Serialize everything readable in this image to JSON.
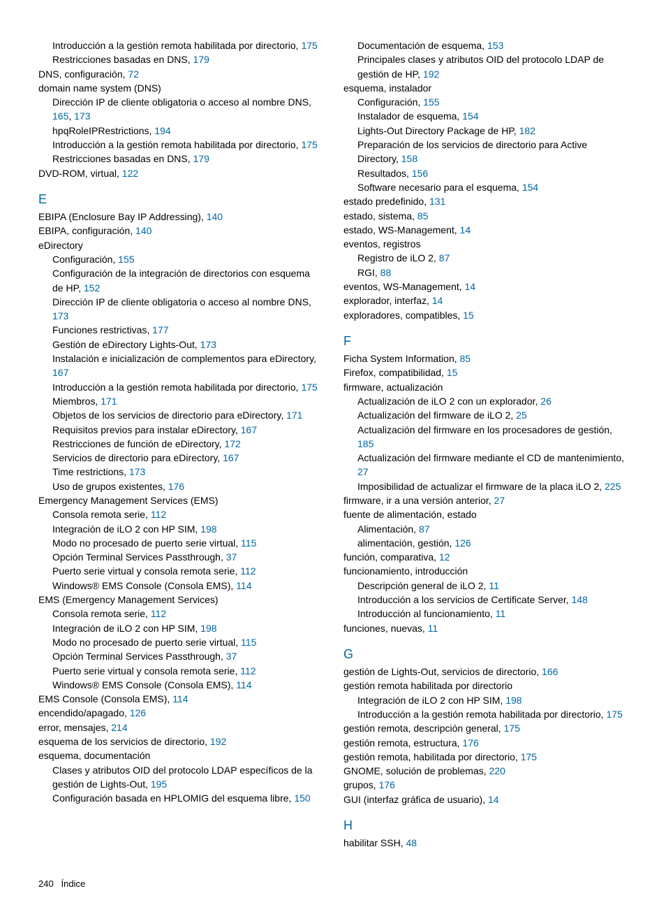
{
  "link_color": "#0066a1",
  "footer": {
    "page_num": "240",
    "label": "Índice"
  },
  "left": [
    {
      "lvl": 1,
      "text": "Introducción a la gestión remota habilitada por directorio, ",
      "pages": [
        "175"
      ]
    },
    {
      "lvl": 1,
      "text": "Restricciones basadas en DNS, ",
      "pages": [
        "179"
      ]
    },
    {
      "lvl": 0,
      "text": "DNS, configuración, ",
      "pages": [
        "72"
      ]
    },
    {
      "lvl": 0,
      "text": "domain name system (DNS)"
    },
    {
      "lvl": 1,
      "text": "Dirección IP de cliente obligatoria o acceso al nombre DNS, ",
      "pages": [
        "165",
        "173"
      ]
    },
    {
      "lvl": 1,
      "text": "hpqRoleIPRestrictions, ",
      "pages": [
        "194"
      ]
    },
    {
      "lvl": 1,
      "text": "Introducción a la gestión remota habilitada por directorio, ",
      "pages": [
        "175"
      ]
    },
    {
      "lvl": 1,
      "text": "Restricciones basadas en DNS, ",
      "pages": [
        "179"
      ]
    },
    {
      "lvl": 0,
      "text": "DVD-ROM, virtual, ",
      "pages": [
        "122"
      ]
    },
    {
      "letter": "E"
    },
    {
      "lvl": 0,
      "text": "EBIPA (Enclosure Bay IP Addressing), ",
      "pages": [
        "140"
      ]
    },
    {
      "lvl": 0,
      "text": "EBIPA, configuración, ",
      "pages": [
        "140"
      ]
    },
    {
      "lvl": 0,
      "text": "eDirectory"
    },
    {
      "lvl": 1,
      "text": "Configuración, ",
      "pages": [
        "155"
      ]
    },
    {
      "lvl": 1,
      "text": "Configuración de la integración de directorios con esquema de HP, ",
      "pages": [
        "152"
      ]
    },
    {
      "lvl": 1,
      "text": "Dirección IP de cliente obligatoria o acceso al nombre DNS, ",
      "pages": [
        "173"
      ]
    },
    {
      "lvl": 1,
      "text": "Funciones restrictivas, ",
      "pages": [
        "177"
      ]
    },
    {
      "lvl": 1,
      "text": "Gestión de eDirectory Lights-Out, ",
      "pages": [
        "173"
      ]
    },
    {
      "lvl": 1,
      "text": "Instalación e inicialización de complementos para eDirectory, ",
      "pages": [
        "167"
      ]
    },
    {
      "lvl": 1,
      "text": "Introducción a la gestión remota habilitada por directorio, ",
      "pages": [
        "175"
      ]
    },
    {
      "lvl": 1,
      "text": "Miembros, ",
      "pages": [
        "171"
      ]
    },
    {
      "lvl": 1,
      "text": "Objetos de los servicios de directorio para eDirectory, ",
      "pages": [
        "171"
      ]
    },
    {
      "lvl": 1,
      "text": "Requisitos previos para instalar eDirectory, ",
      "pages": [
        "167"
      ]
    },
    {
      "lvl": 1,
      "text": "Restricciones de función de eDirectory, ",
      "pages": [
        "172"
      ]
    },
    {
      "lvl": 1,
      "text": "Servicios de directorio para eDirectory, ",
      "pages": [
        "167"
      ]
    },
    {
      "lvl": 1,
      "text": "Time restrictions, ",
      "pages": [
        "173"
      ]
    },
    {
      "lvl": 1,
      "text": "Uso de grupos existentes, ",
      "pages": [
        "176"
      ]
    },
    {
      "lvl": 0,
      "text": "Emergency Management Services (EMS)"
    },
    {
      "lvl": 1,
      "text": "Consola remota serie, ",
      "pages": [
        "112"
      ]
    },
    {
      "lvl": 1,
      "text": "Integración de iLO 2 con HP SIM, ",
      "pages": [
        "198"
      ]
    },
    {
      "lvl": 1,
      "text": "Modo no procesado de puerto serie virtual, ",
      "pages": [
        "115"
      ]
    },
    {
      "lvl": 1,
      "text": "Opción Terminal Services Passthrough, ",
      "pages": [
        "37"
      ]
    },
    {
      "lvl": 1,
      "text": "Puerto serie virtual y consola remota serie, ",
      "pages": [
        "112"
      ]
    },
    {
      "lvl": 1,
      "text": "Windows® EMS Console (Consola EMS), ",
      "pages": [
        "114"
      ]
    },
    {
      "lvl": 0,
      "text": "EMS (Emergency Management Services)"
    },
    {
      "lvl": 1,
      "text": "Consola remota serie, ",
      "pages": [
        "112"
      ]
    },
    {
      "lvl": 1,
      "text": "Integración de iLO 2 con HP SIM, ",
      "pages": [
        "198"
      ]
    },
    {
      "lvl": 1,
      "text": "Modo no procesado de puerto serie virtual, ",
      "pages": [
        "115"
      ]
    },
    {
      "lvl": 1,
      "text": "Opción Terminal Services Passthrough, ",
      "pages": [
        "37"
      ]
    },
    {
      "lvl": 1,
      "text": "Puerto serie virtual y consola remota serie, ",
      "pages": [
        "112"
      ]
    },
    {
      "lvl": 1,
      "text": "Windows® EMS Console (Consola EMS), ",
      "pages": [
        "114"
      ]
    },
    {
      "lvl": 0,
      "text": "EMS Console (Consola EMS), ",
      "pages": [
        "114"
      ]
    },
    {
      "lvl": 0,
      "text": "encendido/apagado, ",
      "pages": [
        "126"
      ]
    },
    {
      "lvl": 0,
      "text": "error, mensajes, ",
      "pages": [
        "214"
      ]
    },
    {
      "lvl": 0,
      "text": "esquema de los servicios de directorio, ",
      "pages": [
        "192"
      ]
    },
    {
      "lvl": 0,
      "text": "esquema, documentación"
    },
    {
      "lvl": 1,
      "text": "Clases y atributos OID del protocolo LDAP específicos de la gestión de Lights-Out, ",
      "pages": [
        "195"
      ]
    },
    {
      "lvl": 1,
      "text": "Configuración basada en HPLOMIG del esquema libre, ",
      "pages": [
        "150"
      ]
    }
  ],
  "right": [
    {
      "lvl": 1,
      "text": "Documentación de esquema, ",
      "pages": [
        "153"
      ]
    },
    {
      "lvl": 1,
      "text": "Principales clases y atributos OID del protocolo LDAP de gestión de HP, ",
      "pages": [
        "192"
      ]
    },
    {
      "lvl": 0,
      "text": "esquema, instalador"
    },
    {
      "lvl": 1,
      "text": "Configuración, ",
      "pages": [
        "155"
      ]
    },
    {
      "lvl": 1,
      "text": "Instalador de esquema, ",
      "pages": [
        "154"
      ]
    },
    {
      "lvl": 1,
      "text": "Lights-Out Directory Package de HP, ",
      "pages": [
        "182"
      ]
    },
    {
      "lvl": 1,
      "text": "Preparación de los servicios de directorio para Active Directory, ",
      "pages": [
        "158"
      ]
    },
    {
      "lvl": 1,
      "text": "Resultados, ",
      "pages": [
        "156"
      ]
    },
    {
      "lvl": 1,
      "text": "Software necesario para el esquema, ",
      "pages": [
        "154"
      ]
    },
    {
      "lvl": 0,
      "text": "estado predefinido, ",
      "pages": [
        "131"
      ]
    },
    {
      "lvl": 0,
      "text": "estado, sistema, ",
      "pages": [
        "85"
      ]
    },
    {
      "lvl": 0,
      "text": "estado, WS-Management, ",
      "pages": [
        "14"
      ]
    },
    {
      "lvl": 0,
      "text": "eventos, registros"
    },
    {
      "lvl": 1,
      "text": "Registro de iLO 2, ",
      "pages": [
        "87"
      ]
    },
    {
      "lvl": 1,
      "text": "RGI, ",
      "pages": [
        "88"
      ]
    },
    {
      "lvl": 0,
      "text": "eventos, WS-Management, ",
      "pages": [
        "14"
      ]
    },
    {
      "lvl": 0,
      "text": "explorador, interfaz, ",
      "pages": [
        "14"
      ]
    },
    {
      "lvl": 0,
      "text": "exploradores, compatibles, ",
      "pages": [
        "15"
      ]
    },
    {
      "letter": "F"
    },
    {
      "lvl": 0,
      "text": "Ficha System Information, ",
      "pages": [
        "85"
      ]
    },
    {
      "lvl": 0,
      "text": "Firefox, compatibilidad, ",
      "pages": [
        "15"
      ]
    },
    {
      "lvl": 0,
      "text": "firmware, actualización"
    },
    {
      "lvl": 1,
      "text": "Actualización de iLO 2 con un explorador, ",
      "pages": [
        "26"
      ]
    },
    {
      "lvl": 1,
      "text": "Actualización del firmware de iLO 2, ",
      "pages": [
        "25"
      ]
    },
    {
      "lvl": 1,
      "text": "Actualización del firmware en los procesadores de gestión, ",
      "pages": [
        "185"
      ]
    },
    {
      "lvl": 1,
      "text": "Actualización del firmware mediante el CD de mantenimiento, ",
      "pages": [
        "27"
      ]
    },
    {
      "lvl": 1,
      "text": "Imposibilidad de actualizar el firmware de la placa iLO 2, ",
      "pages": [
        "225"
      ]
    },
    {
      "lvl": 0,
      "text": "firmware, ir a una versión anterior, ",
      "pages": [
        "27"
      ]
    },
    {
      "lvl": 0,
      "text": "fuente de alimentación, estado"
    },
    {
      "lvl": 1,
      "text": "Alimentación, ",
      "pages": [
        "87"
      ]
    },
    {
      "lvl": 1,
      "text": "alimentación, gestión, ",
      "pages": [
        "126"
      ]
    },
    {
      "lvl": 0,
      "text": "función, comparativa, ",
      "pages": [
        "12"
      ]
    },
    {
      "lvl": 0,
      "text": "funcionamiento, introducción"
    },
    {
      "lvl": 1,
      "text": "Descripción general de iLO 2, ",
      "pages": [
        "11"
      ]
    },
    {
      "lvl": 1,
      "text": "Introducción a los servicios de Certificate Server, ",
      "pages": [
        "148"
      ]
    },
    {
      "lvl": 1,
      "text": "Introducción al funcionamiento, ",
      "pages": [
        "11"
      ]
    },
    {
      "lvl": 0,
      "text": "funciones, nuevas, ",
      "pages": [
        "11"
      ]
    },
    {
      "letter": "G"
    },
    {
      "lvl": 0,
      "text": "gestión de Lights-Out, servicios de directorio, ",
      "pages": [
        "166"
      ]
    },
    {
      "lvl": 0,
      "text": "gestión remota habilitada por directorio"
    },
    {
      "lvl": 1,
      "text": "Integración de iLO 2 con HP SIM, ",
      "pages": [
        "198"
      ]
    },
    {
      "lvl": 1,
      "text": "Introducción a la gestión remota habilitada por directorio, ",
      "pages": [
        "175"
      ]
    },
    {
      "lvl": 0,
      "text": "gestión remota, descripción general, ",
      "pages": [
        "175"
      ]
    },
    {
      "lvl": 0,
      "text": "gestión remota, estructura, ",
      "pages": [
        "176"
      ]
    },
    {
      "lvl": 0,
      "text": "gestión remota, habilitada por directorio, ",
      "pages": [
        "175"
      ]
    },
    {
      "lvl": 0,
      "text": "GNOME, solución de problemas, ",
      "pages": [
        "220"
      ]
    },
    {
      "lvl": 0,
      "text": "grupos, ",
      "pages": [
        "176"
      ]
    },
    {
      "lvl": 0,
      "text": "GUI (interfaz gráfica de usuario), ",
      "pages": [
        "14"
      ]
    },
    {
      "letter": "H"
    },
    {
      "lvl": 0,
      "text": "habilitar SSH, ",
      "pages": [
        "48"
      ]
    }
  ]
}
